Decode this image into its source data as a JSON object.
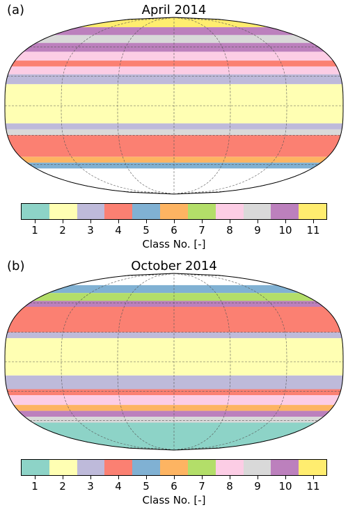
{
  "figure": {
    "class_colors": [
      "#8dd3c7",
      "#ffffb3",
      "#bebada",
      "#fb8072",
      "#80b1d3",
      "#fdb462",
      "#b3de69",
      "#fccde5",
      "#d9d9d9",
      "#bc80bd",
      "#ffed6f"
    ],
    "colorbar_ticks": [
      "1",
      "2",
      "3",
      "4",
      "5",
      "6",
      "7",
      "8",
      "9",
      "10",
      "11"
    ],
    "colorbar_label": "Class No. [-]"
  },
  "panels": [
    {
      "letter": "(a)",
      "title": "April 2014",
      "bands": [
        {
          "lat": [
            80,
            90
          ],
          "class": 11
        },
        {
          "lat": [
            72,
            80
          ],
          "class": 10
        },
        {
          "lat": [
            64,
            72
          ],
          "class": 9
        },
        {
          "lat": [
            55,
            64
          ],
          "class": 10
        },
        {
          "lat": [
            46,
            55
          ],
          "class": 8
        },
        {
          "lat": [
            40,
            46
          ],
          "class": 4
        },
        {
          "lat": [
            32,
            40
          ],
          "class": 8
        },
        {
          "lat": [
            22,
            32
          ],
          "class": 3
        },
        {
          "lat": [
            -18,
            22
          ],
          "class": 2
        },
        {
          "lat": [
            -24,
            -18
          ],
          "class": 3
        },
        {
          "lat": [
            -30,
            -24
          ],
          "class": 9
        },
        {
          "lat": [
            -52,
            -30
          ],
          "class": 4
        },
        {
          "lat": [
            -58,
            -52
          ],
          "class": 6
        },
        {
          "lat": [
            -64,
            -58
          ],
          "class": 5
        },
        {
          "lat": [
            -90,
            -64
          ],
          "class": 0
        }
      ]
    },
    {
      "letter": "(b)",
      "title": "October 2014",
      "bands": [
        {
          "lat": [
            78,
            90
          ],
          "class": 0
        },
        {
          "lat": [
            70,
            78
          ],
          "class": 5
        },
        {
          "lat": [
            62,
            70
          ],
          "class": 7
        },
        {
          "lat": [
            56,
            62
          ],
          "class": 10
        },
        {
          "lat": [
            30,
            56
          ],
          "class": 4
        },
        {
          "lat": [
            24,
            30
          ],
          "class": 3
        },
        {
          "lat": [
            -14,
            24
          ],
          "class": 2
        },
        {
          "lat": [
            -28,
            -14
          ],
          "class": 3
        },
        {
          "lat": [
            -34,
            -28
          ],
          "class": 4
        },
        {
          "lat": [
            -44,
            -34
          ],
          "class": 8
        },
        {
          "lat": [
            -50,
            -44
          ],
          "class": 6
        },
        {
          "lat": [
            -56,
            -50
          ],
          "class": 10
        },
        {
          "lat": [
            -62,
            -56
          ],
          "class": 9
        },
        {
          "lat": [
            -90,
            -62
          ],
          "class": 1
        }
      ]
    }
  ]
}
